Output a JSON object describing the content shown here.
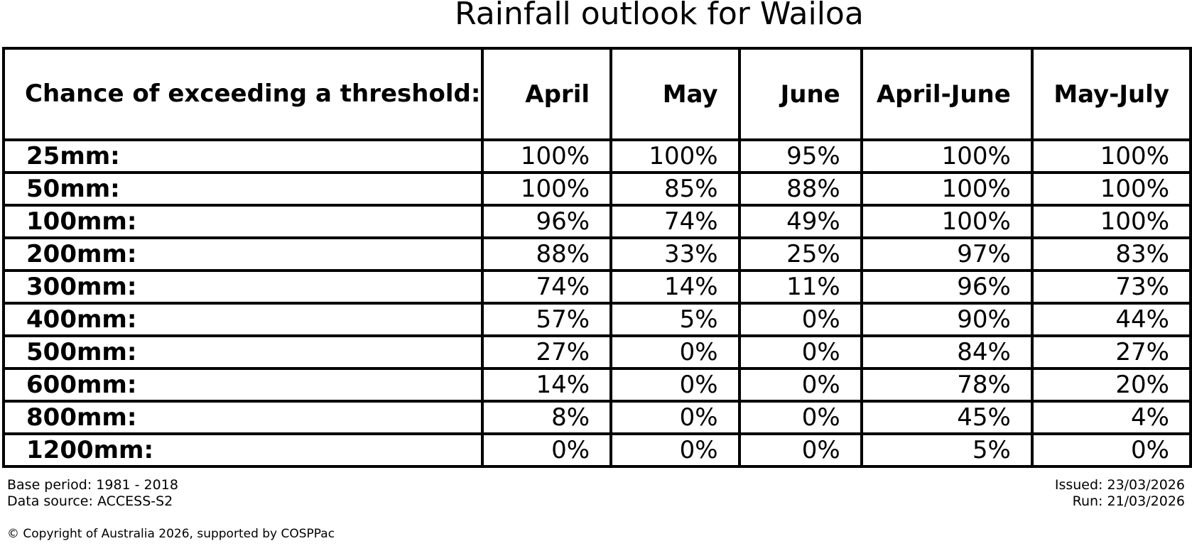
{
  "title": "Rainfall outlook for Wailoa",
  "table": {
    "corner_header": "Chance of\nexceeding\na threshold:",
    "columns": [
      "April",
      "May",
      "June",
      "April-June",
      "May-July"
    ],
    "rows": [
      {
        "label": "25mm:",
        "values": [
          "100%",
          "100%",
          "95%",
          "100%",
          "100%"
        ]
      },
      {
        "label": "50mm:",
        "values": [
          "100%",
          "85%",
          "88%",
          "100%",
          "100%"
        ]
      },
      {
        "label": "100mm:",
        "values": [
          "96%",
          "74%",
          "49%",
          "100%",
          "100%"
        ]
      },
      {
        "label": "200mm:",
        "values": [
          "88%",
          "33%",
          "25%",
          "97%",
          "83%"
        ]
      },
      {
        "label": "300mm:",
        "values": [
          "74%",
          "14%",
          "11%",
          "96%",
          "73%"
        ]
      },
      {
        "label": "400mm:",
        "values": [
          "57%",
          "5%",
          "0%",
          "90%",
          "44%"
        ]
      },
      {
        "label": "500mm:",
        "values": [
          "27%",
          "0%",
          "0%",
          "84%",
          "27%"
        ]
      },
      {
        "label": "600mm:",
        "values": [
          "14%",
          "0%",
          "0%",
          "78%",
          "20%"
        ]
      },
      {
        "label": "800mm:",
        "values": [
          "8%",
          "0%",
          "0%",
          "45%",
          "4%"
        ]
      },
      {
        "label": "1200mm:",
        "values": [
          "0%",
          "0%",
          "0%",
          "5%",
          "0%"
        ]
      }
    ]
  },
  "footer": {
    "base_period": "Base period: 1981 - 2018",
    "data_source": "Data source: ACCESS-S2",
    "issued": "Issued: 23/03/2026",
    "run": "Run: 21/03/2026",
    "copyright": "© Copyright of Australia 2026, supported by COSPPac"
  },
  "colors": {
    "text": "#000000",
    "background": "#ffffff",
    "grid": "#000000"
  },
  "chart_data": {
    "type": "table",
    "title": "Rainfall outlook for Wailoa",
    "row_header_title": "Chance of exceeding a threshold:",
    "columns": [
      "April",
      "May",
      "June",
      "April-June",
      "May-July"
    ],
    "row_labels": [
      "25mm",
      "50mm",
      "100mm",
      "200mm",
      "300mm",
      "400mm",
      "500mm",
      "600mm",
      "800mm",
      "1200mm"
    ],
    "values_percent": [
      [
        100,
        100,
        95,
        100,
        100
      ],
      [
        100,
        85,
        88,
        100,
        100
      ],
      [
        96,
        74,
        49,
        100,
        100
      ],
      [
        88,
        33,
        25,
        97,
        83
      ],
      [
        74,
        14,
        11,
        96,
        73
      ],
      [
        57,
        5,
        0,
        90,
        44
      ],
      [
        27,
        0,
        0,
        84,
        27
      ],
      [
        14,
        0,
        0,
        78,
        20
      ],
      [
        8,
        0,
        0,
        45,
        4
      ],
      [
        0,
        0,
        0,
        5,
        0
      ]
    ],
    "units": "percent chance",
    "grid": true,
    "legend": false
  }
}
